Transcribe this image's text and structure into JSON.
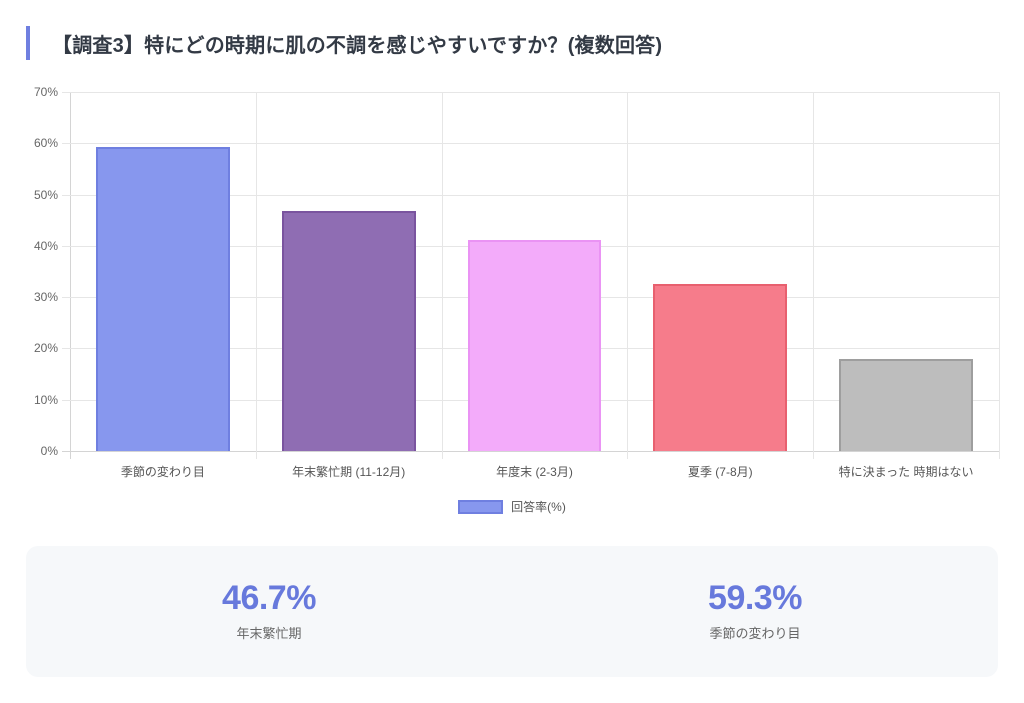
{
  "title": "【調査3】特にどの時期に肌の不調を感じやすいですか？(複数回答)",
  "colors": {
    "accent": "#6f7fe0",
    "stat_value": "#6779dc"
  },
  "chart_data": {
    "type": "bar",
    "title": "【調査3】特にどの時期に肌の不調を感じやすいですか？(複数回答)",
    "categories": [
      "季節の変わり目",
      "年末繁忙期 (11-12月)",
      "年度末 (2-3月)",
      "夏季 (7-8月)",
      "特に決まった 時期はない"
    ],
    "series": [
      {
        "name": "回答率(%)",
        "values": [
          59.3,
          46.7,
          41.1,
          32.6,
          17.9
        ]
      }
    ],
    "bar_colors": [
      {
        "fill": "#8797ee",
        "border": "#6f7fe0"
      },
      {
        "fill": "#8f6db3",
        "border": "#7a549f"
      },
      {
        "fill": "#f3abfa",
        "border": "#ea93f4"
      },
      {
        "fill": "#f67c8b",
        "border": "#e8606f"
      },
      {
        "fill": "#bdbdbd",
        "border": "#9e9e9e"
      }
    ],
    "xlabel": "",
    "ylabel": "",
    "ylim": [
      0,
      70
    ],
    "yticks": [
      "0%",
      "10%",
      "20%",
      "30%",
      "40%",
      "50%",
      "60%",
      "70%"
    ],
    "grid": true,
    "legend_position": "bottom"
  },
  "legend": {
    "label": "回答率(%)"
  },
  "stats": [
    {
      "value": "46.7%",
      "label": "年末繁忙期"
    },
    {
      "value": "59.3%",
      "label": "季節の変わり目"
    }
  ]
}
